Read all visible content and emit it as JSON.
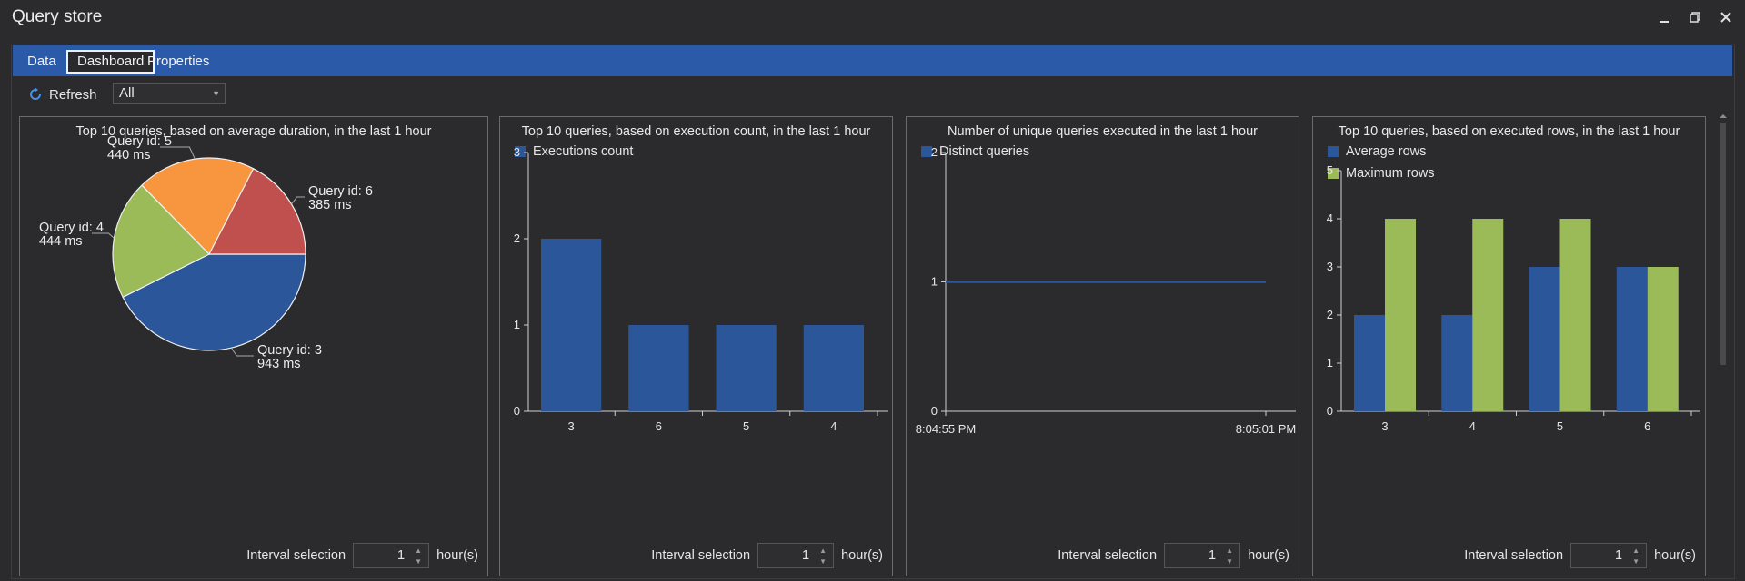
{
  "window": {
    "title": "Query store"
  },
  "tabs": [
    {
      "label": "Data"
    },
    {
      "label": "Dashboard"
    },
    {
      "label": "Properties"
    }
  ],
  "toolbar": {
    "refresh_label": "Refresh",
    "filter_value": "All"
  },
  "colors": {
    "blue": "#2b579a",
    "orange": "#f7963f",
    "red": "#c0504d",
    "green": "#9bbb59",
    "tabbar": "#2b5aa8"
  },
  "panels": [
    {
      "title": "Top 10 queries, based on average duration, in the last 1 hour",
      "interval": {
        "label": "Interval selection",
        "value": "1",
        "unit": "hour(s)"
      }
    },
    {
      "title": "Top 10 queries, based on execution count, in the last 1 hour",
      "interval": {
        "label": "Interval selection",
        "value": "1",
        "unit": "hour(s)"
      }
    },
    {
      "title": "Number of unique queries executed in the last 1 hour",
      "interval": {
        "label": "Interval selection",
        "value": "1",
        "unit": "hour(s)"
      }
    },
    {
      "title": "Top 10 queries, based on executed rows, in the last 1 hour",
      "interval": {
        "label": "Interval selection",
        "value": "1",
        "unit": "hour(s)"
      }
    }
  ],
  "chart_data": [
    {
      "type": "pie",
      "title": "Top 10 queries, based on average duration, in the last 1 hour",
      "slices": [
        {
          "name": "Query id: 3",
          "value": 943,
          "label": "943 ms",
          "color": "#2b579a"
        },
        {
          "name": "Query id: 4",
          "value": 444,
          "label": "444 ms",
          "color": "#9bbb59"
        },
        {
          "name": "Query id: 5",
          "value": 440,
          "label": "440 ms",
          "color": "#f7963f"
        },
        {
          "name": "Query id: 6",
          "value": 385,
          "label": "385 ms",
          "color": "#c0504d"
        }
      ]
    },
    {
      "type": "bar",
      "title": "Top 10 queries, based on execution count, in the last 1 hour",
      "categories": [
        "3",
        "6",
        "5",
        "4"
      ],
      "series": [
        {
          "name": "Executions count",
          "values": [
            2,
            1,
            1,
            1
          ],
          "color": "#2b579a"
        }
      ],
      "ylim": [
        0,
        3
      ],
      "yticks": [
        0,
        1,
        2,
        3
      ]
    },
    {
      "type": "line",
      "title": "Number of unique queries executed in the last 1 hour",
      "x": [
        "8:04:55 PM",
        "8:05:01 PM"
      ],
      "series": [
        {
          "name": "Distinct queries",
          "values": [
            1,
            1
          ],
          "color": "#2b579a"
        }
      ],
      "ylim": [
        0,
        2
      ],
      "yticks": [
        0,
        1,
        2
      ]
    },
    {
      "type": "bar",
      "title": "Top 10 queries, based on executed rows, in the last 1 hour",
      "categories": [
        "3",
        "4",
        "5",
        "6"
      ],
      "series": [
        {
          "name": "Average rows",
          "values": [
            2,
            2,
            3,
            3
          ],
          "color": "#2b579a"
        },
        {
          "name": "Maximum rows",
          "values": [
            4,
            4,
            4,
            3
          ],
          "color": "#9bbb59"
        }
      ],
      "ylim": [
        0,
        5
      ],
      "yticks": [
        0,
        1,
        2,
        3,
        4,
        5
      ]
    }
  ]
}
